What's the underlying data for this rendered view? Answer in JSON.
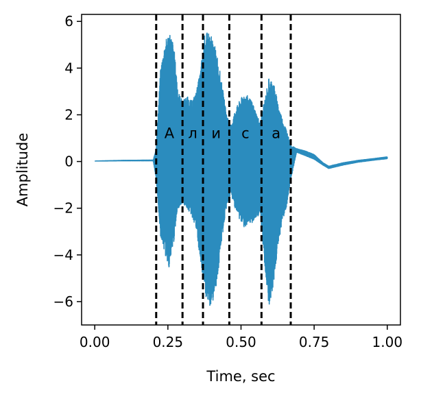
{
  "chart_data": {
    "type": "line",
    "title": "",
    "xlabel": "Time, sec",
    "ylabel": "Amplitude",
    "xlim": [
      -0.045,
      1.045
    ],
    "ylim": [
      -7.0,
      6.3
    ],
    "xticks": [
      {
        "value": 0.0,
        "label": "0.00"
      },
      {
        "value": 0.25,
        "label": "0.25"
      },
      {
        "value": 0.5,
        "label": "0.50"
      },
      {
        "value": 0.75,
        "label": "0.75"
      },
      {
        "value": 1.0,
        "label": "1.00"
      }
    ],
    "yticks": [
      {
        "value": 6,
        "label": "6"
      },
      {
        "value": 4,
        "label": "4"
      },
      {
        "value": 2,
        "label": "2"
      },
      {
        "value": 0,
        "label": "0"
      },
      {
        "value": -2,
        "label": "−2"
      },
      {
        "value": -4,
        "label": "−4"
      },
      {
        "value": -6,
        "label": "−6"
      }
    ],
    "grid": false,
    "series": [
      {
        "color": "#2b8cbe",
        "envelope": [
          [
            0.0,
            0.02,
            0.02
          ],
          [
            0.1,
            0.05,
            0.03
          ],
          [
            0.2,
            0.06,
            0.03
          ],
          [
            0.21,
            0.6,
            -0.8
          ],
          [
            0.225,
            4.0,
            -3.2
          ],
          [
            0.24,
            5.1,
            -4.0
          ],
          [
            0.255,
            5.6,
            -4.6
          ],
          [
            0.27,
            5.0,
            -3.5
          ],
          [
            0.285,
            3.0,
            -2.0
          ],
          [
            0.3,
            2.6,
            -1.8
          ],
          [
            0.315,
            2.8,
            -2.0
          ],
          [
            0.33,
            2.6,
            -2.3
          ],
          [
            0.345,
            2.9,
            -2.8
          ],
          [
            0.36,
            3.8,
            -4.2
          ],
          [
            0.375,
            5.4,
            -5.6
          ],
          [
            0.39,
            5.6,
            -6.3
          ],
          [
            0.405,
            5.2,
            -6.0
          ],
          [
            0.42,
            4.5,
            -5.0
          ],
          [
            0.435,
            3.3,
            -3.3
          ],
          [
            0.45,
            2.1,
            -2.0
          ],
          [
            0.465,
            1.5,
            -1.4
          ],
          [
            0.48,
            2.2,
            -2.0
          ],
          [
            0.495,
            2.6,
            -2.5
          ],
          [
            0.51,
            2.9,
            -2.8
          ],
          [
            0.525,
            2.8,
            -2.8
          ],
          [
            0.54,
            2.5,
            -2.6
          ],
          [
            0.555,
            2.0,
            -2.4
          ],
          [
            0.565,
            1.7,
            -2.2
          ],
          [
            0.58,
            2.6,
            -4.3
          ],
          [
            0.595,
            3.6,
            -6.2
          ],
          [
            0.61,
            3.5,
            -5.4
          ],
          [
            0.625,
            2.6,
            -3.8
          ],
          [
            0.64,
            1.9,
            -2.6
          ],
          [
            0.655,
            1.4,
            -2.0
          ],
          [
            0.67,
            0.7,
            -0.8
          ],
          [
            0.69,
            0.55,
            0.4
          ],
          [
            0.72,
            0.45,
            0.25
          ],
          [
            0.75,
            0.3,
            0.1
          ],
          [
            0.78,
            -0.05,
            -0.15
          ],
          [
            0.8,
            -0.2,
            -0.3
          ],
          [
            0.85,
            -0.05,
            -0.15
          ],
          [
            0.9,
            0.05,
            -0.03
          ],
          [
            0.95,
            0.12,
            0.05
          ],
          [
            1.0,
            0.2,
            0.12
          ]
        ]
      }
    ],
    "segment_boundaries": [
      0.21,
      0.3,
      0.37,
      0.46,
      0.57,
      0.67
    ],
    "segment_labels": [
      {
        "x": 0.255,
        "y": 1.0,
        "text": "А"
      },
      {
        "x": 0.335,
        "y": 1.0,
        "text": "л"
      },
      {
        "x": 0.415,
        "y": 1.0,
        "text": "и"
      },
      {
        "x": 0.515,
        "y": 1.0,
        "text": "с"
      },
      {
        "x": 0.62,
        "y": 1.0,
        "text": "а"
      }
    ]
  }
}
